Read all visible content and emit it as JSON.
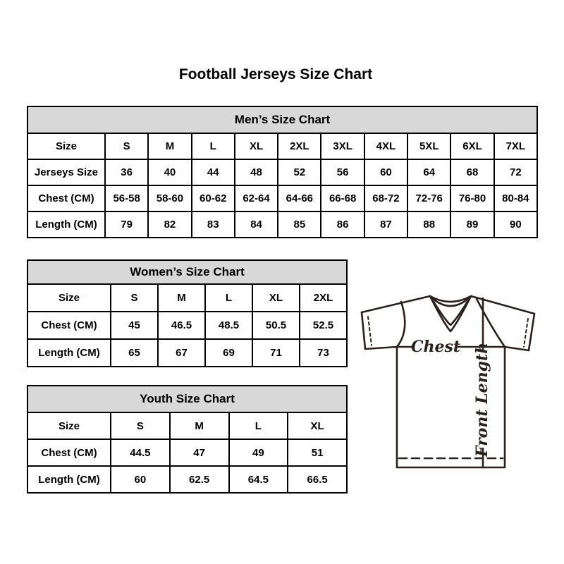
{
  "page": {
    "title": "Football Jerseys Size Chart"
  },
  "colors": {
    "background": "#ffffff",
    "table_header_bg": "#d8d8d8",
    "table_border": "#000000",
    "text": "#000000",
    "jersey_line": "#2a211e"
  },
  "tables": {
    "mens": {
      "title": "Men’s Size Chart",
      "rows": [
        {
          "label": "Size",
          "values": [
            "S",
            "M",
            "L",
            "XL",
            "2XL",
            "3XL",
            "4XL",
            "5XL",
            "6XL",
            "7XL"
          ]
        },
        {
          "label": "Jerseys Size",
          "values": [
            "36",
            "40",
            "44",
            "48",
            "52",
            "56",
            "60",
            "64",
            "68",
            "72"
          ]
        },
        {
          "label": "Chest (CM)",
          "values": [
            "56-58",
            "58-60",
            "60-62",
            "62-64",
            "64-66",
            "66-68",
            "68-72",
            "72-76",
            "76-80",
            "80-84"
          ]
        },
        {
          "label": "Length (CM)",
          "values": [
            "79",
            "82",
            "83",
            "84",
            "85",
            "86",
            "87",
            "88",
            "89",
            "90"
          ]
        }
      ]
    },
    "womens": {
      "title": "Women’s Size Chart",
      "rows": [
        {
          "label": "Size",
          "values": [
            "S",
            "M",
            "L",
            "XL",
            "2XL"
          ]
        },
        {
          "label": "Chest (CM)",
          "values": [
            "45",
            "46.5",
            "48.5",
            "50.5",
            "52.5"
          ]
        },
        {
          "label": "Length (CM)",
          "values": [
            "65",
            "67",
            "69",
            "71",
            "73"
          ]
        }
      ]
    },
    "youth": {
      "title": "Youth Size Chart",
      "rows": [
        {
          "label": "Size",
          "values": [
            "S",
            "M",
            "L",
            "XL"
          ]
        },
        {
          "label": "Chest (CM)",
          "values": [
            "44.5",
            "47",
            "49",
            "51"
          ]
        },
        {
          "label": "Length (CM)",
          "values": [
            "60",
            "62.5",
            "64.5",
            "66.5"
          ]
        }
      ]
    }
  },
  "diagram": {
    "chest_label": "Chest",
    "front_length_label": "Front Length"
  },
  "chart_data": [
    {
      "type": "table",
      "title": "Men’s Size Chart",
      "columns": [
        "Size",
        "S",
        "M",
        "L",
        "XL",
        "2XL",
        "3XL",
        "4XL",
        "5XL",
        "6XL",
        "7XL"
      ],
      "rows": [
        [
          "Jerseys Size",
          "36",
          "40",
          "44",
          "48",
          "52",
          "56",
          "60",
          "64",
          "68",
          "72"
        ],
        [
          "Chest (CM)",
          "56-58",
          "58-60",
          "60-62",
          "62-64",
          "64-66",
          "66-68",
          "68-72",
          "72-76",
          "76-80",
          "80-84"
        ],
        [
          "Length (CM)",
          "79",
          "82",
          "83",
          "84",
          "85",
          "86",
          "87",
          "88",
          "89",
          "90"
        ]
      ]
    },
    {
      "type": "table",
      "title": "Women’s Size Chart",
      "columns": [
        "Size",
        "S",
        "M",
        "L",
        "XL",
        "2XL"
      ],
      "rows": [
        [
          "Chest (CM)",
          "45",
          "46.5",
          "48.5",
          "50.5",
          "52.5"
        ],
        [
          "Length (CM)",
          "65",
          "67",
          "69",
          "71",
          "73"
        ]
      ]
    },
    {
      "type": "table",
      "title": "Youth Size Chart",
      "columns": [
        "Size",
        "S",
        "M",
        "L",
        "XL"
      ],
      "rows": [
        [
          "Chest (CM)",
          "44.5",
          "47",
          "49",
          "51"
        ],
        [
          "Length (CM)",
          "60",
          "62.5",
          "64.5",
          "66.5"
        ]
      ]
    }
  ]
}
